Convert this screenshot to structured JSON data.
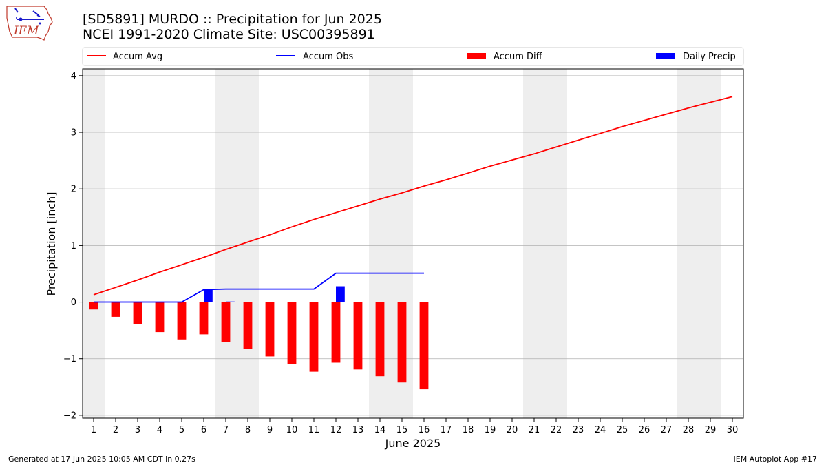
{
  "header": {
    "title_line1": "[SD5891] MURDO :: Precipitation for Jun 2025",
    "title_line2": "NCEI 1991-2020 Climate Site: USC00395891",
    "logo_text": "IEM"
  },
  "footer": {
    "generated": "Generated at 17 Jun 2025 10:05 AM CDT in 0.27s",
    "app": "IEM Autoplot App #17"
  },
  "colors": {
    "avg": "#ff0000",
    "obs": "#0000ff",
    "diff": "#ff0000",
    "daily": "#0000ff",
    "weekend_shade": "#eeeeee",
    "grid": "#b0b0b0"
  },
  "chart_data": {
    "type": "bar",
    "xlabel": "June 2025",
    "ylabel": "Precipitation [inch]",
    "xlim": [
      0.5,
      30.5
    ],
    "ylim": [
      -2.05,
      4.12
    ],
    "yticks": [
      -2,
      -1,
      0,
      1,
      2,
      3,
      4
    ],
    "ytick_labels": [
      "−2",
      "−1",
      "0",
      "1",
      "2",
      "3",
      "4"
    ],
    "days": [
      1,
      2,
      3,
      4,
      5,
      6,
      7,
      8,
      9,
      10,
      11,
      12,
      13,
      14,
      15,
      16,
      17,
      18,
      19,
      20,
      21,
      22,
      23,
      24,
      25,
      26,
      27,
      28,
      29,
      30
    ],
    "weekend_ranges": [
      [
        0.5,
        1.5
      ],
      [
        6.5,
        8.5
      ],
      [
        13.5,
        15.5
      ],
      [
        20.5,
        22.5
      ],
      [
        27.5,
        29.5
      ]
    ],
    "grid": true,
    "legend_placement": "top, above plot",
    "series": [
      {
        "name": "Accum Avg",
        "type": "line",
        "x": [
          1,
          2,
          3,
          4,
          5,
          6,
          7,
          8,
          9,
          10,
          11,
          12,
          13,
          14,
          15,
          16,
          17,
          18,
          19,
          20,
          21,
          22,
          23,
          24,
          25,
          26,
          27,
          28,
          29,
          30
        ],
        "values": [
          0.13,
          0.26,
          0.39,
          0.53,
          0.66,
          0.79,
          0.93,
          1.06,
          1.19,
          1.33,
          1.46,
          1.58,
          1.7,
          1.82,
          1.93,
          2.05,
          2.16,
          2.28,
          2.4,
          2.51,
          2.62,
          2.74,
          2.86,
          2.98,
          3.1,
          3.21,
          3.32,
          3.43,
          3.53,
          3.63
        ]
      },
      {
        "name": "Accum Obs",
        "type": "line",
        "x": [
          1,
          2,
          3,
          4,
          5,
          6,
          7,
          8,
          9,
          10,
          11,
          12,
          13,
          14,
          15,
          16
        ],
        "values": [
          0.0,
          0.0,
          0.0,
          0.0,
          0.0,
          0.22,
          0.23,
          0.23,
          0.23,
          0.23,
          0.23,
          0.51,
          0.51,
          0.51,
          0.51,
          0.51
        ]
      },
      {
        "name": "Accum Diff",
        "type": "bar",
        "x": [
          1,
          2,
          3,
          4,
          5,
          6,
          7,
          8,
          9,
          10,
          11,
          12,
          13,
          14,
          15,
          16
        ],
        "values": [
          -0.13,
          -0.26,
          -0.39,
          -0.53,
          -0.66,
          -0.57,
          -0.7,
          -0.83,
          -0.96,
          -1.1,
          -1.23,
          -1.07,
          -1.19,
          -1.31,
          -1.42,
          -1.54
        ]
      },
      {
        "name": "Daily Precip",
        "type": "bar",
        "x": [
          1,
          2,
          3,
          4,
          5,
          6,
          7,
          8,
          9,
          10,
          11,
          12,
          13,
          14,
          15,
          16
        ],
        "values": [
          0,
          0,
          0,
          0,
          0,
          0.22,
          0.01,
          0,
          0,
          0,
          0,
          0.28,
          0,
          0,
          0,
          0
        ]
      }
    ]
  }
}
